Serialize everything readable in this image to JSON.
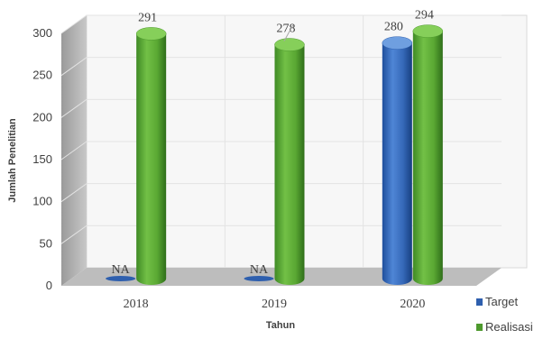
{
  "chart_data": {
    "type": "bar",
    "title": "",
    "xlabel": "Tahun",
    "ylabel": "Jumlah Penelitian",
    "categories": [
      "2018",
      "2019",
      "2020"
    ],
    "ylim": [
      0,
      300
    ],
    "yticks": [
      0,
      50,
      100,
      150,
      200,
      250,
      300
    ],
    "grid": true,
    "legend_position": "bottom-right",
    "series": [
      {
        "name": "Target",
        "color": "#2e5fae",
        "values": [
          null,
          null,
          280
        ],
        "labels": [
          "NA",
          "NA",
          "280"
        ]
      },
      {
        "name": "Realisasi",
        "color": "#4e9a2e",
        "values": [
          291,
          278,
          294
        ],
        "labels": [
          "291",
          "278",
          "294"
        ]
      }
    ]
  }
}
